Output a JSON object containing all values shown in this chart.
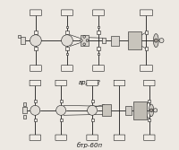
{
  "bg_color": "#ede9e3",
  "line_color": "#1a1a1a",
  "fill_light": "#e8e4de",
  "fill_gray": "#b0a898",
  "fill_dark": "#7a7060",
  "label1": "врдп-2",
  "label2": "бтр-60п",
  "fig_width": 2.0,
  "fig_height": 1.67,
  "dpi": 100
}
